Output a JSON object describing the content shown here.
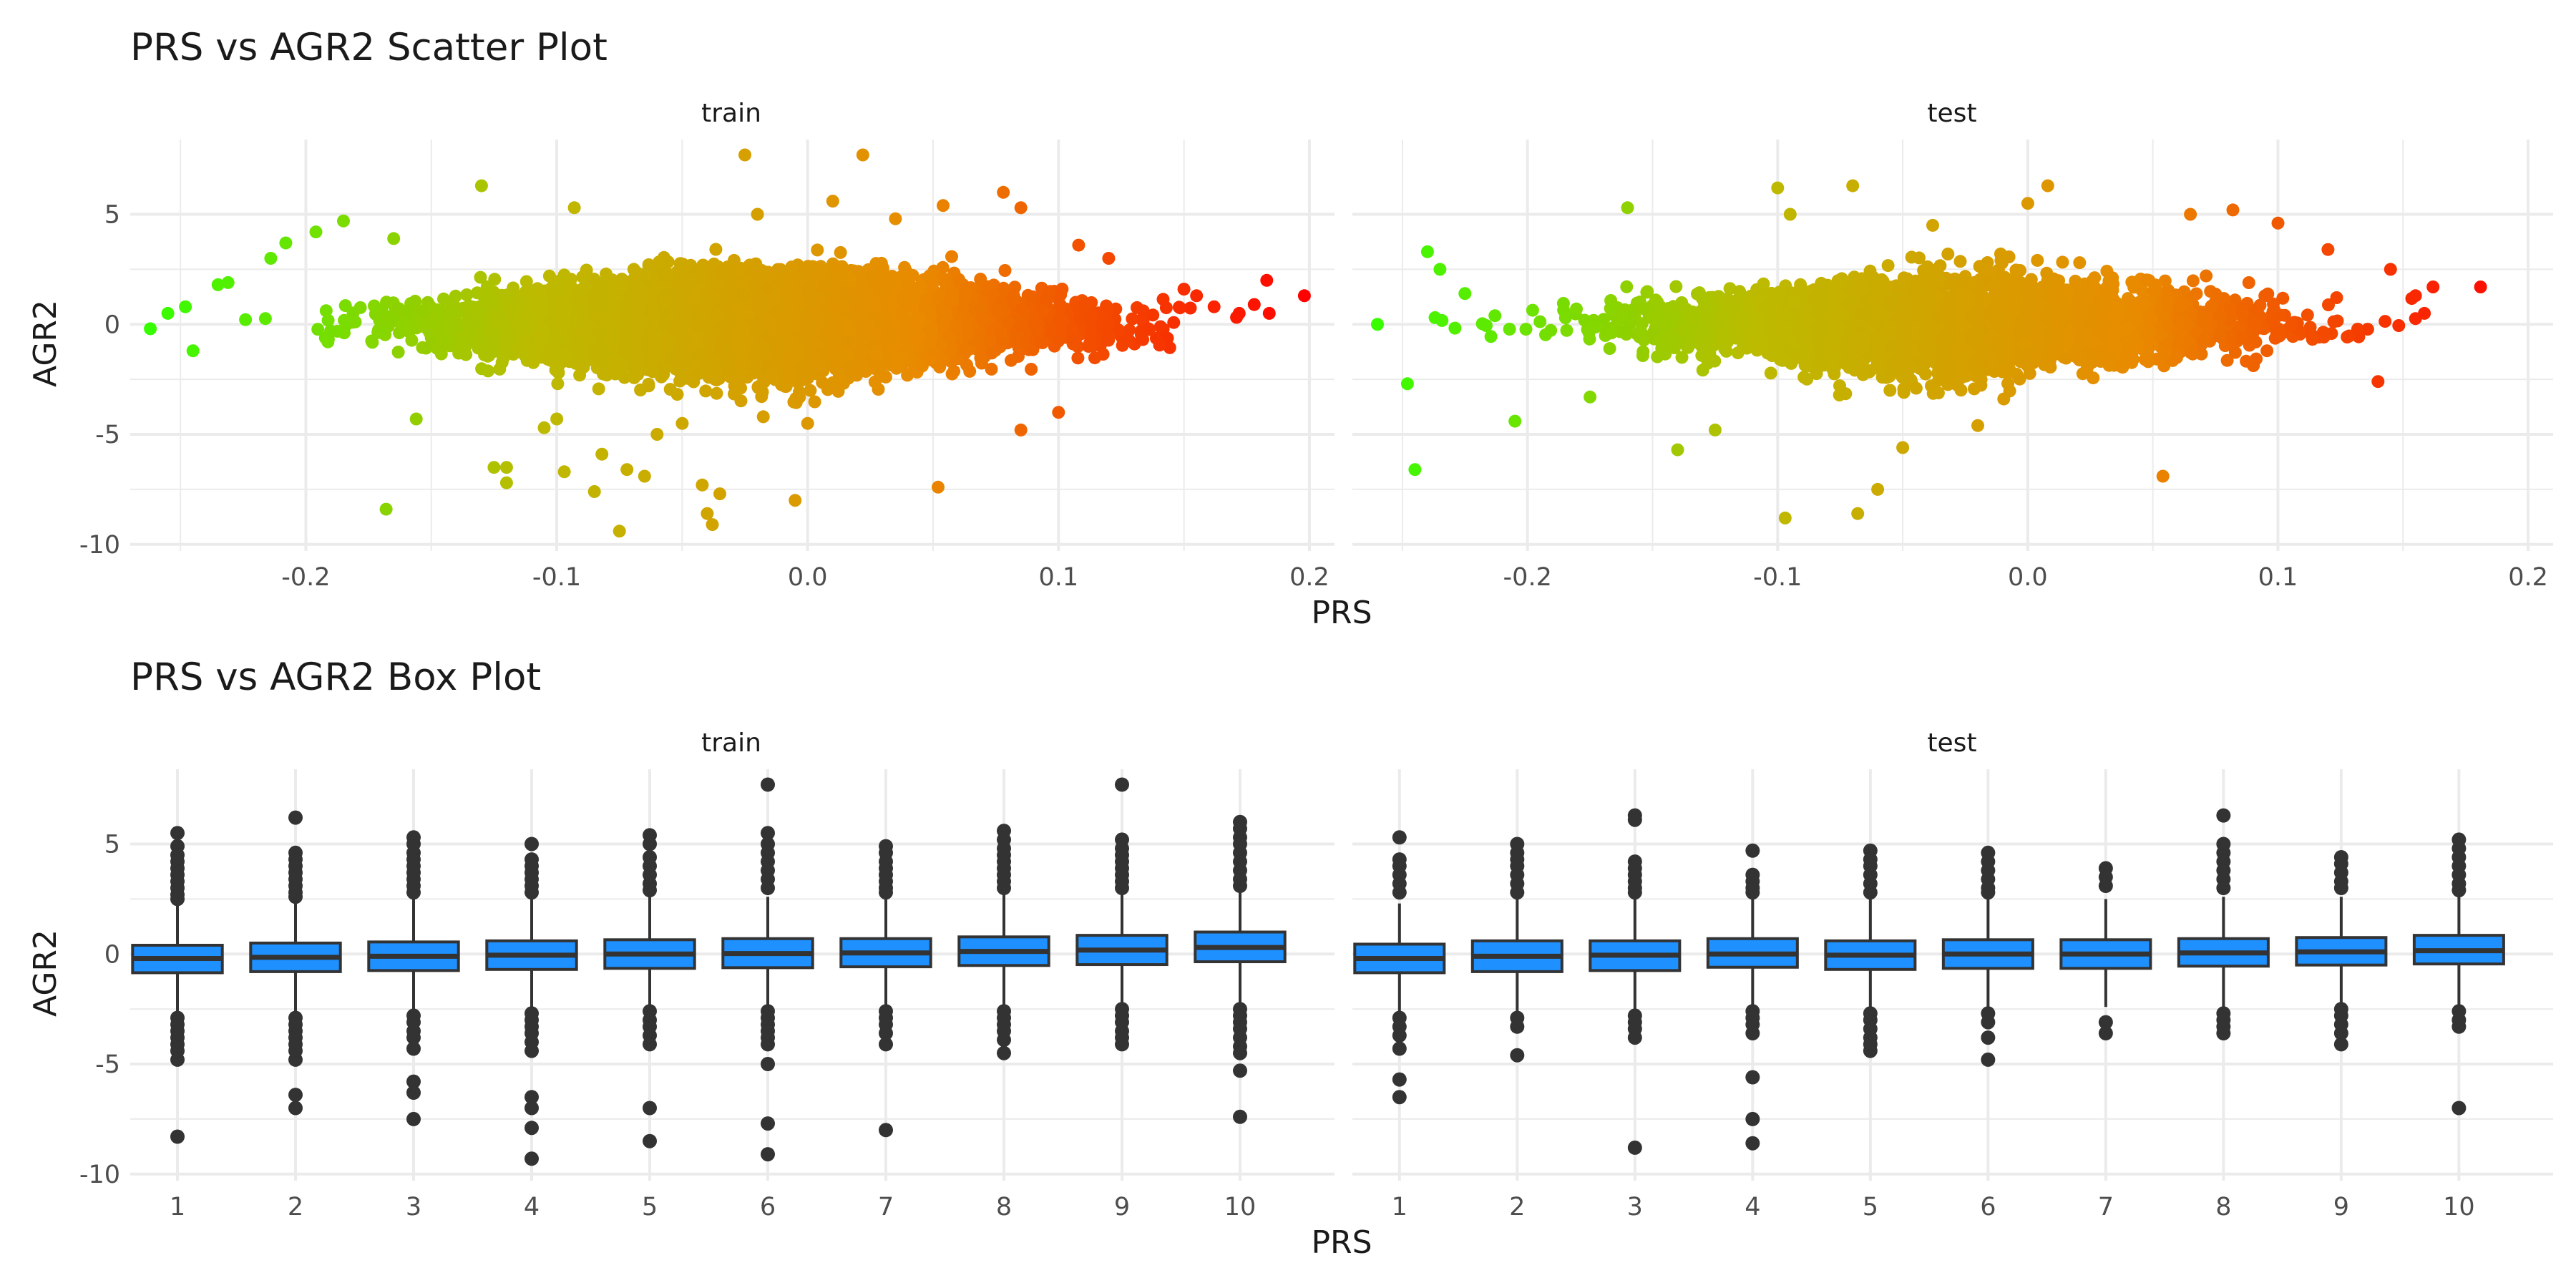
{
  "figure": {
    "background": "#ffffff",
    "grid_color": "#ebebeb",
    "text_color": "#1a1a1a",
    "tick_color": "#4d4d4d"
  },
  "chart_data": [
    {
      "type": "scatter",
      "title": "PRS vs AGR2 Scatter Plot",
      "xlabel": "PRS",
      "ylabel": "AGR2",
      "facets": [
        "train",
        "test"
      ],
      "xlim": [
        -0.27,
        0.21
      ],
      "ylim": [
        -10.3,
        8.4
      ],
      "x_ticks": [
        -0.2,
        -0.1,
        0.0,
        0.1,
        0.2
      ],
      "x_tick_labels": [
        "-0.2",
        "-0.1",
        "0.0",
        "0.1",
        "0.2"
      ],
      "y_ticks": [
        -10,
        -5,
        0,
        5
      ],
      "y_tick_labels": [
        "-10",
        "-5",
        "0",
        "5"
      ],
      "grid": true,
      "legend": "none",
      "color_by": "PRS",
      "color_gradient": [
        "#33ff00",
        "#bcbb00",
        "#e98a00",
        "#ff0000"
      ],
      "point_color": "#4a4a4a",
      "series": [
        {
          "facet": "train",
          "cloud": {
            "x_min": -0.26,
            "x_max": 0.2,
            "x_center": -0.02,
            "y_center": 0.0,
            "y_sd": 1.1,
            "n_points": 9000
          },
          "outliers": [
            [
              -0.262,
              -0.2
            ],
            [
              -0.255,
              0.5
            ],
            [
              -0.248,
              0.8
            ],
            [
              -0.245,
              -1.2
            ],
            [
              -0.235,
              1.8
            ],
            [
              -0.231,
              1.9
            ],
            [
              -0.214,
              3.0
            ],
            [
              -0.208,
              3.7
            ],
            [
              -0.196,
              4.2
            ],
            [
              -0.185,
              4.7
            ],
            [
              -0.168,
              -8.4
            ],
            [
              -0.165,
              3.9
            ],
            [
              -0.156,
              -4.3
            ],
            [
              -0.13,
              6.3
            ],
            [
              -0.125,
              -6.5
            ],
            [
              -0.12,
              -6.5
            ],
            [
              -0.12,
              -7.2
            ],
            [
              -0.105,
              -4.7
            ],
            [
              -0.1,
              -4.3
            ],
            [
              -0.097,
              -6.7
            ],
            [
              -0.093,
              5.3
            ],
            [
              -0.085,
              -7.6
            ],
            [
              -0.082,
              -5.9
            ],
            [
              -0.075,
              -9.4
            ],
            [
              -0.072,
              -6.6
            ],
            [
              -0.065,
              -6.9
            ],
            [
              -0.06,
              -5.0
            ],
            [
              -0.05,
              -4.5
            ],
            [
              -0.042,
              -7.3
            ],
            [
              -0.04,
              -8.6
            ],
            [
              -0.038,
              -9.1
            ],
            [
              -0.035,
              -7.7
            ],
            [
              -0.025,
              7.7
            ],
            [
              -0.02,
              5.0
            ],
            [
              -0.005,
              -8.0
            ],
            [
              0.0,
              -4.5
            ],
            [
              0.01,
              5.6
            ],
            [
              0.022,
              7.7
            ],
            [
              0.035,
              4.8
            ],
            [
              0.052,
              -7.4
            ],
            [
              0.054,
              5.4
            ],
            [
              0.078,
              6.0
            ],
            [
              0.085,
              5.3
            ],
            [
              0.085,
              -4.8
            ],
            [
              0.1,
              -4.0
            ],
            [
              0.108,
              3.6
            ],
            [
              0.12,
              3.0
            ],
            [
              0.15,
              1.6
            ],
            [
              0.155,
              1.3
            ],
            [
              0.162,
              0.8
            ],
            [
              0.172,
              0.5
            ],
            [
              0.178,
              0.9
            ],
            [
              0.183,
              2.0
            ],
            [
              0.184,
              0.5
            ],
            [
              0.198,
              1.3
            ]
          ]
        },
        {
          "facet": "test",
          "cloud": {
            "x_min": -0.24,
            "x_max": 0.19,
            "x_center": -0.03,
            "y_center": 0.0,
            "y_sd": 1.05,
            "n_points": 4500
          },
          "outliers": [
            [
              -0.26,
              0.0
            ],
            [
              -0.248,
              -2.7
            ],
            [
              -0.245,
              -6.6
            ],
            [
              -0.24,
              3.3
            ],
            [
              -0.235,
              2.5
            ],
            [
              -0.225,
              1.4
            ],
            [
              -0.205,
              -4.4
            ],
            [
              -0.175,
              -3.3
            ],
            [
              -0.16,
              5.3
            ],
            [
              -0.14,
              -5.7
            ],
            [
              -0.125,
              -4.8
            ],
            [
              -0.1,
              6.2
            ],
            [
              -0.097,
              -8.8
            ],
            [
              -0.095,
              5.0
            ],
            [
              -0.07,
              6.3
            ],
            [
              -0.068,
              -8.6
            ],
            [
              -0.06,
              -7.5
            ],
            [
              -0.05,
              -5.6
            ],
            [
              -0.038,
              4.5
            ],
            [
              -0.02,
              -4.6
            ],
            [
              0.0,
              5.5
            ],
            [
              0.008,
              6.3
            ],
            [
              0.054,
              -6.9
            ],
            [
              0.065,
              5.0
            ],
            [
              0.082,
              5.2
            ],
            [
              0.1,
              4.6
            ],
            [
              0.12,
              3.4
            ],
            [
              0.14,
              -2.6
            ],
            [
              0.145,
              2.5
            ],
            [
              0.155,
              1.3
            ],
            [
              0.162,
              1.7
            ],
            [
              0.181,
              1.7
            ]
          ]
        }
      ]
    },
    {
      "type": "box",
      "title": "PRS vs AGR2 Box Plot",
      "xlabel": "PRS",
      "ylabel": "AGR2",
      "facets": [
        "train",
        "test"
      ],
      "categories": [
        "1",
        "2",
        "3",
        "4",
        "5",
        "6",
        "7",
        "8",
        "9",
        "10"
      ],
      "ylim": [
        -10.3,
        8.4
      ],
      "y_ticks": [
        -10,
        -5,
        0,
        5
      ],
      "y_tick_labels": [
        "-10",
        "-5",
        "0",
        "5"
      ],
      "grid": true,
      "legend": "none",
      "box_fill": "#1e90ff",
      "box_stroke": "#333333",
      "outlier_color": "#333333",
      "series": [
        {
          "facet": "train",
          "boxes": [
            {
              "category": "1",
              "q1": -0.85,
              "median": -0.2,
              "q3": 0.4,
              "whisker_low": -2.7,
              "whisker_high": 2.3,
              "outliers": [
                5.5,
                4.9,
                4.5,
                4.2,
                3.9,
                3.6,
                3.3,
                3.0,
                2.7,
                2.5,
                -2.9,
                -3.2,
                -3.5,
                -3.8,
                -4.1,
                -4.4,
                -4.8,
                -8.3
              ]
            },
            {
              "category": "2",
              "q1": -0.8,
              "median": -0.15,
              "q3": 0.5,
              "whisker_low": -2.7,
              "whisker_high": 2.4,
              "outliers": [
                6.2,
                4.6,
                4.3,
                4.0,
                3.7,
                3.4,
                3.1,
                2.8,
                2.6,
                -2.9,
                -3.2,
                -3.5,
                -3.8,
                -4.1,
                -4.4,
                -4.8,
                -6.4,
                -7.0
              ]
            },
            {
              "category": "3",
              "q1": -0.75,
              "median": -0.1,
              "q3": 0.55,
              "whisker_low": -2.6,
              "whisker_high": 2.5,
              "outliers": [
                5.3,
                5.0,
                4.6,
                4.3,
                4.0,
                3.7,
                3.4,
                3.1,
                2.8,
                -2.8,
                -3.1,
                -3.5,
                -3.8,
                -4.3,
                -5.8,
                -6.3,
                -7.5
              ]
            },
            {
              "category": "4",
              "q1": -0.7,
              "median": -0.05,
              "q3": 0.6,
              "whisker_low": -2.5,
              "whisker_high": 2.5,
              "outliers": [
                5.0,
                4.3,
                4.0,
                3.7,
                3.4,
                3.1,
                2.8,
                -2.7,
                -3.0,
                -3.3,
                -3.6,
                -4.0,
                -4.4,
                -6.5,
                -7.0,
                -7.9,
                -9.3
              ]
            },
            {
              "category": "5",
              "q1": -0.65,
              "median": 0.0,
              "q3": 0.65,
              "whisker_low": -2.4,
              "whisker_high": 2.6,
              "outliers": [
                5.4,
                5.0,
                4.4,
                4.0,
                3.6,
                3.2,
                2.9,
                -2.6,
                -3.0,
                -3.3,
                -3.7,
                -4.1,
                -7.0,
                -8.5
              ]
            },
            {
              "category": "6",
              "q1": -0.62,
              "median": 0.02,
              "q3": 0.7,
              "whisker_low": -2.4,
              "whisker_high": 2.6,
              "outliers": [
                7.7,
                5.5,
                5.0,
                4.6,
                4.2,
                3.8,
                3.4,
                3.0,
                -2.6,
                -2.9,
                -3.2,
                -3.5,
                -3.8,
                -4.1,
                -5.0,
                -7.7,
                -9.1
              ]
            },
            {
              "category": "7",
              "q1": -0.58,
              "median": 0.05,
              "q3": 0.7,
              "whisker_low": -2.3,
              "whisker_high": 2.6,
              "outliers": [
                4.9,
                4.6,
                4.2,
                3.9,
                3.6,
                3.3,
                3.0,
                2.8,
                -2.6,
                -2.9,
                -3.2,
                -3.6,
                -4.1,
                -8.0
              ]
            },
            {
              "category": "8",
              "q1": -0.52,
              "median": 0.12,
              "q3": 0.78,
              "whisker_low": -2.3,
              "whisker_high": 2.7,
              "outliers": [
                5.6,
                5.2,
                4.8,
                4.5,
                4.2,
                3.9,
                3.6,
                3.3,
                3.0,
                -2.6,
                -2.9,
                -3.2,
                -3.5,
                -3.9,
                -4.5
              ]
            },
            {
              "category": "9",
              "q1": -0.48,
              "median": 0.18,
              "q3": 0.85,
              "whisker_low": -2.2,
              "whisker_high": 2.8,
              "outliers": [
                7.7,
                5.2,
                4.8,
                4.5,
                4.2,
                3.9,
                3.6,
                3.3,
                3.0,
                -2.5,
                -2.8,
                -3.1,
                -3.5,
                -3.8,
                -4.1
              ]
            },
            {
              "category": "10",
              "q1": -0.35,
              "median": 0.3,
              "q3": 1.0,
              "whisker_low": -2.2,
              "whisker_high": 2.9,
              "outliers": [
                6.0,
                5.7,
                5.3,
                5.0,
                4.6,
                4.2,
                3.8,
                3.4,
                3.1,
                -2.5,
                -2.8,
                -3.1,
                -3.4,
                -3.8,
                -4.2,
                -4.5,
                -5.3,
                -7.4
              ]
            }
          ]
        },
        {
          "facet": "test",
          "boxes": [
            {
              "category": "1",
              "q1": -0.85,
              "median": -0.2,
              "q3": 0.45,
              "whisker_low": -2.6,
              "whisker_high": 2.3,
              "outliers": [
                5.3,
                4.3,
                4.0,
                3.6,
                3.2,
                2.8,
                -2.9,
                -3.3,
                -3.7,
                -4.3,
                -5.7,
                -6.5
              ]
            },
            {
              "category": "2",
              "q1": -0.8,
              "median": -0.1,
              "q3": 0.6,
              "whisker_low": -2.6,
              "whisker_high": 2.5,
              "outliers": [
                5.0,
                4.6,
                4.3,
                4.0,
                3.6,
                3.2,
                2.8,
                -2.9,
                -3.3,
                -4.6
              ]
            },
            {
              "category": "3",
              "q1": -0.75,
              "median": -0.05,
              "q3": 0.6,
              "whisker_low": -2.6,
              "whisker_high": 2.5,
              "outliers": [
                6.3,
                6.1,
                4.2,
                3.9,
                3.6,
                3.3,
                3.0,
                2.8,
                -2.8,
                -3.1,
                -3.4,
                -3.8,
                -8.8
              ]
            },
            {
              "category": "4",
              "q1": -0.6,
              "median": 0.0,
              "q3": 0.7,
              "whisker_low": -2.4,
              "whisker_high": 2.6,
              "outliers": [
                4.7,
                3.6,
                3.3,
                3.0,
                2.8,
                -2.6,
                -2.9,
                -3.2,
                -3.6,
                -5.6,
                -7.5,
                -8.6
              ]
            },
            {
              "category": "5",
              "q1": -0.7,
              "median": -0.05,
              "q3": 0.6,
              "whisker_low": -2.5,
              "whisker_high": 2.5,
              "outliers": [
                4.7,
                4.3,
                4.0,
                3.6,
                3.2,
                2.8,
                -2.7,
                -3.0,
                -3.4,
                -3.8,
                -4.1,
                -4.4
              ]
            },
            {
              "category": "6",
              "q1": -0.65,
              "median": 0.0,
              "q3": 0.65,
              "whisker_low": -2.4,
              "whisker_high": 2.5,
              "outliers": [
                4.6,
                4.2,
                3.8,
                3.4,
                3.0,
                2.8,
                -2.7,
                -3.1,
                -3.8,
                -4.8
              ]
            },
            {
              "category": "7",
              "q1": -0.65,
              "median": 0.0,
              "q3": 0.65,
              "whisker_low": -2.4,
              "whisker_high": 2.5,
              "outliers": [
                3.9,
                3.5,
                3.1,
                -3.1,
                -3.6
              ]
            },
            {
              "category": "8",
              "q1": -0.55,
              "median": 0.05,
              "q3": 0.7,
              "whisker_low": -2.4,
              "whisker_high": 2.6,
              "outliers": [
                6.3,
                5.0,
                4.6,
                4.2,
                3.8,
                3.4,
                3.0,
                -2.7,
                -3.0,
                -3.3,
                -3.6
              ]
            },
            {
              "category": "9",
              "q1": -0.5,
              "median": 0.1,
              "q3": 0.75,
              "whisker_low": -2.3,
              "whisker_high": 2.6,
              "outliers": [
                4.4,
                4.1,
                3.7,
                3.3,
                3.0,
                -2.5,
                -2.8,
                -3.2,
                -3.6,
                -4.1
              ]
            },
            {
              "category": "10",
              "q1": -0.45,
              "median": 0.15,
              "q3": 0.85,
              "whisker_low": -2.3,
              "whisker_high": 2.7,
              "outliers": [
                5.2,
                4.8,
                4.4,
                4.0,
                3.6,
                3.2,
                2.9,
                -2.6,
                -3.0,
                -3.3,
                -7.0
              ]
            }
          ]
        }
      ]
    }
  ]
}
